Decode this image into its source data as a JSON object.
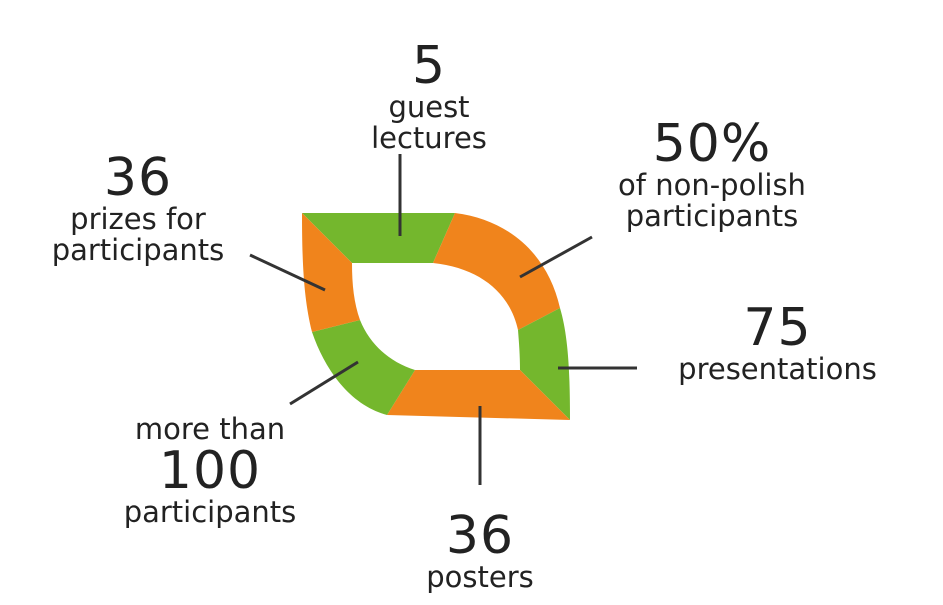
{
  "colors": {
    "green": "#74b72d",
    "orange": "#f0841c",
    "line": "#333333",
    "text": "#222222"
  },
  "stats": {
    "guest_lectures": {
      "number": "5",
      "label_1": "guest",
      "label_2": "lectures"
    },
    "non_polish": {
      "number": "50%",
      "label_1": "of non-polish",
      "label_2": "participants"
    },
    "prizes": {
      "number": "36",
      "label_1": "prizes for",
      "label_2": "participants"
    },
    "presentations": {
      "number": "75",
      "label_1": "presentations"
    },
    "participants": {
      "prefix": "more than",
      "number": "100",
      "label_1": "participants"
    },
    "posters": {
      "number": "36",
      "label_1": "posters"
    }
  }
}
